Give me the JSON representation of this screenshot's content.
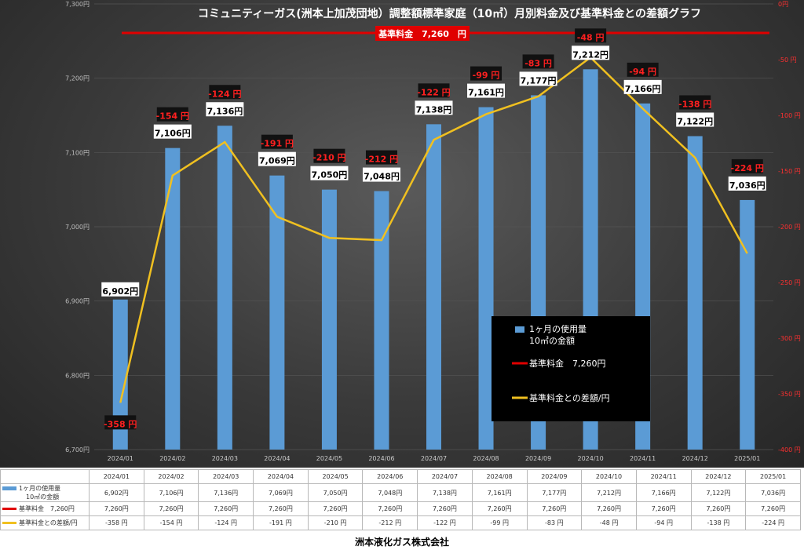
{
  "chart_data": {
    "type": "bar+line",
    "title": "コミュニティーガス(洲本上加茂団地）調整額標準家庭（10㎥）月別料金及び基準料金との差額グラフ",
    "categories": [
      "2024/01",
      "2024/02",
      "2024/03",
      "2024/04",
      "2024/05",
      "2024/06",
      "2024/07",
      "2024/08",
      "2024/09",
      "2024/10",
      "2024/11",
      "2024/12",
      "2025/01"
    ],
    "series": [
      {
        "name": "1ヶ月の使用量 10㎥の金額",
        "type": "bar",
        "axis": "left",
        "values": [
          6902,
          7106,
          7136,
          7069,
          7050,
          7048,
          7138,
          7161,
          7177,
          7212,
          7166,
          7122,
          7036
        ],
        "labels": [
          "6,902円",
          "7,106円",
          "7,136円",
          "7,069円",
          "7,050円",
          "7,048円",
          "7,138円",
          "7,161円",
          "7,177円",
          "7,212円",
          "7,166円",
          "7,122円",
          "7,036円"
        ],
        "table": [
          "6,902円",
          "7,106円",
          "7,136円",
          "7,069円",
          "7,050円",
          "7,048円",
          "7,138円",
          "7,161円",
          "7,177円",
          "7,212円",
          "7,166円",
          "7,122円",
          "7,036円"
        ]
      },
      {
        "name": "基準料金 7,260円",
        "type": "line",
        "axis": "left",
        "values": [
          7260,
          7260,
          7260,
          7260,
          7260,
          7260,
          7260,
          7260,
          7260,
          7260,
          7260,
          7260,
          7260
        ],
        "table": [
          "7,260円",
          "7,260円",
          "7,260円",
          "7,260円",
          "7,260円",
          "7,260円",
          "7,260円",
          "7,260円",
          "7,260円",
          "7,260円",
          "7,260円",
          "7,260円",
          "7,260円"
        ]
      },
      {
        "name": "基準料金との差額/円",
        "type": "line",
        "axis": "right",
        "values": [
          -358,
          -154,
          -124,
          -191,
          -210,
          -212,
          -122,
          -99,
          -83,
          -48,
          -94,
          -138,
          -224
        ],
        "labels": [
          "-358 円",
          "-154 円",
          "-124 円",
          "-191 円",
          "-210 円",
          "-212 円",
          "-122 円",
          "-99 円",
          "-83 円",
          "-48 円",
          "-94 円",
          "-138 円",
          "-224 円"
        ],
        "table": [
          "-358 円",
          "-154 円",
          "-124 円",
          "-191 円",
          "-210 円",
          "-212 円",
          "-122 円",
          "-99 円",
          "-83 円",
          "-48 円",
          "-94 円",
          "-138 円",
          "-224 円"
        ]
      }
    ],
    "ylim_left": [
      6700,
      7300
    ],
    "yticks_left": [
      "6,700円",
      "6,800円",
      "6,900円",
      "7,000円",
      "7,100円",
      "7,200円",
      "7,300円"
    ],
    "ylim_right": [
      -400,
      0
    ],
    "yticks_right": [
      "-400 円",
      "-350 円",
      "-300 円",
      "-250 円",
      "-200 円",
      "-150 円",
      "-100 円",
      "-50 円",
      "0円"
    ],
    "base_label": "基準料金　7,260　円",
    "legend": {
      "placement": "bottom-right",
      "items": [
        {
          "label": "1ヶ月の使用量\n10㎥の金額"
        },
        {
          "label": "基準料金　7,260円"
        },
        {
          "label": "基準料金との差額/円"
        }
      ]
    },
    "colors": {
      "bar": "#5b9bd5",
      "base_line": "#e00000",
      "diff_line": "#f0c020"
    }
  },
  "table": {
    "row_labels": [
      "1ヶ月の使用量",
      "10㎥の金額",
      "基準料金　7,260円",
      "基準料金との差額/円"
    ]
  },
  "footer": "洲本液化ガス株式会社"
}
